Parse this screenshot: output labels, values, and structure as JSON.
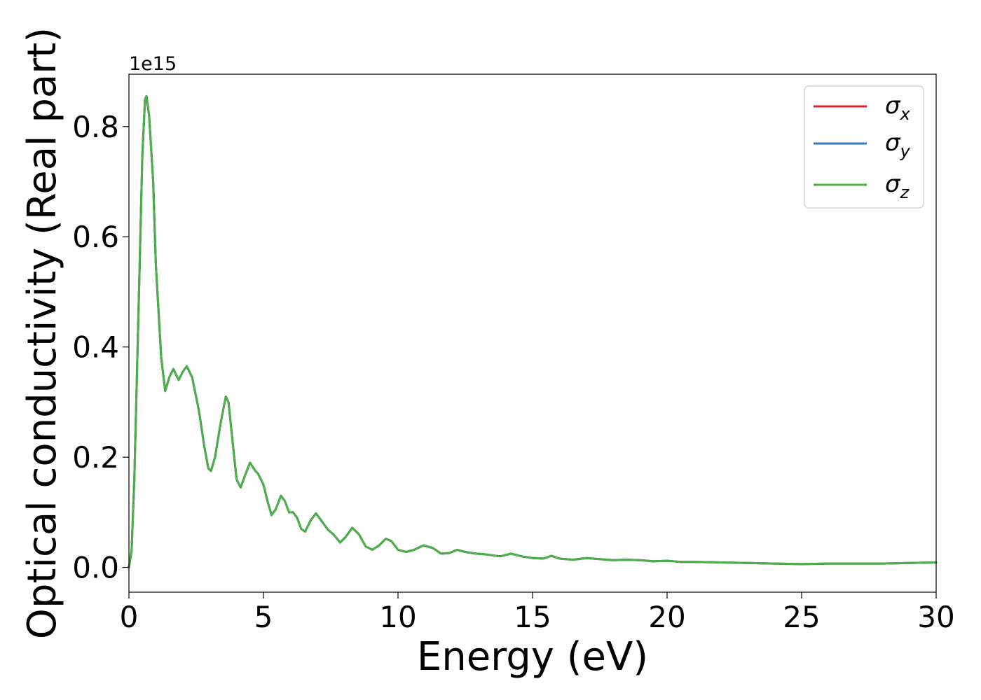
{
  "chart_data": {
    "type": "line",
    "xlabel": "Energy (eV)",
    "ylabel": "Optical conductivity (Real part)",
    "y_offset_text": "1e15",
    "xlim": [
      0,
      30
    ],
    "ylim": [
      -0.045,
      0.895
    ],
    "y_scale": 1000000000000000.0,
    "x_ticks": [
      0,
      5,
      10,
      15,
      20,
      25,
      30
    ],
    "x_tick_labels": [
      "0",
      "5",
      "10",
      "15",
      "20",
      "25",
      "30"
    ],
    "y_ticks": [
      0.0,
      0.2,
      0.4,
      0.6,
      0.8
    ],
    "y_tick_labels": [
      "0.0",
      "0.2",
      "0.4",
      "0.6",
      "0.8"
    ],
    "grid": false,
    "legend_position": "top-right",
    "colors": {
      "sigma_x": "#d62728",
      "sigma_y": "#3a7bbf",
      "sigma_z": "#4daf4a"
    },
    "series": [
      {
        "name": "σx",
        "name_base": "σ",
        "name_sub": "x",
        "color": "#d62728"
      },
      {
        "name": "σy",
        "name_base": "σ",
        "name_sub": "y",
        "color": "#3a7bbf"
      },
      {
        "name": "σz",
        "name_base": "σ",
        "name_sub": "z",
        "color": "#4daf4a"
      }
    ],
    "x": [
      0,
      0.1,
      0.2,
      0.35,
      0.5,
      0.6,
      0.65,
      0.75,
      0.9,
      1.0,
      1.2,
      1.35,
      1.5,
      1.65,
      1.85,
      2.0,
      2.15,
      2.35,
      2.6,
      2.8,
      2.95,
      3.05,
      3.2,
      3.4,
      3.6,
      3.7,
      3.85,
      4.0,
      4.15,
      4.3,
      4.5,
      4.7,
      4.8,
      5.0,
      5.15,
      5.3,
      5.45,
      5.65,
      5.8,
      5.95,
      6.1,
      6.25,
      6.4,
      6.55,
      6.75,
      6.95,
      7.15,
      7.4,
      7.6,
      7.85,
      8.05,
      8.3,
      8.55,
      8.8,
      9.05,
      9.3,
      9.55,
      9.75,
      10.0,
      10.3,
      10.6,
      10.95,
      11.3,
      11.6,
      11.9,
      12.2,
      12.5,
      12.9,
      13.2,
      13.5,
      13.8,
      14.2,
      14.6,
      15.0,
      15.4,
      15.7,
      16.0,
      16.5,
      17.0,
      17.5,
      18.0,
      18.5,
      19.0,
      19.5,
      20.0,
      20.5,
      21.0,
      22.0,
      23.0,
      24.0,
      25.0,
      26.0,
      27.0,
      28.0,
      29.0,
      30.0
    ],
    "values": [
      0.0,
      0.03,
      0.16,
      0.45,
      0.75,
      0.85,
      0.855,
      0.82,
      0.7,
      0.55,
      0.38,
      0.32,
      0.345,
      0.36,
      0.34,
      0.355,
      0.365,
      0.345,
      0.285,
      0.22,
      0.18,
      0.175,
      0.2,
      0.26,
      0.31,
      0.3,
      0.23,
      0.16,
      0.145,
      0.165,
      0.19,
      0.175,
      0.17,
      0.15,
      0.12,
      0.095,
      0.105,
      0.13,
      0.12,
      0.1,
      0.1,
      0.09,
      0.07,
      0.065,
      0.085,
      0.098,
      0.085,
      0.068,
      0.06,
      0.045,
      0.055,
      0.072,
      0.06,
      0.038,
      0.032,
      0.04,
      0.052,
      0.048,
      0.032,
      0.028,
      0.032,
      0.04,
      0.035,
      0.025,
      0.026,
      0.032,
      0.028,
      0.025,
      0.024,
      0.022,
      0.02,
      0.025,
      0.02,
      0.017,
      0.016,
      0.021,
      0.016,
      0.014,
      0.017,
      0.015,
      0.013,
      0.014,
      0.013,
      0.011,
      0.012,
      0.01,
      0.01,
      0.009,
      0.008,
      0.007,
      0.006,
      0.007,
      0.007,
      0.007,
      0.008,
      0.009
    ]
  }
}
